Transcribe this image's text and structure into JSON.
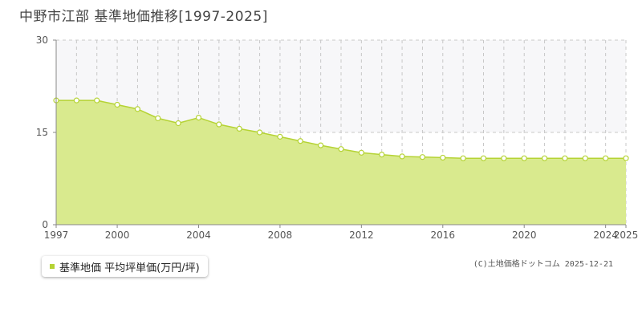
{
  "title": "中野市江部 基準地価推移[1997-2025]",
  "chart_data": {
    "type": "area",
    "title": "中野市江部 基準地価推移[1997-2025]",
    "xlabel": "",
    "ylabel": "",
    "xlim": [
      1997,
      2025
    ],
    "ylim": [
      0,
      30
    ],
    "y_ticks": [
      0,
      15,
      30
    ],
    "x_ticks": [
      1997,
      2000,
      2004,
      2008,
      2012,
      2016,
      2020,
      2024,
      2025
    ],
    "grid": true,
    "legend_position": "bottom-left",
    "series": [
      {
        "name": "基準地価 平均坪単価(万円/坪)",
        "color": "#b5d334",
        "fill": "#d9ea8e",
        "x": [
          1997,
          1998,
          1999,
          2000,
          2001,
          2002,
          2003,
          2004,
          2005,
          2006,
          2007,
          2008,
          2009,
          2010,
          2011,
          2012,
          2013,
          2014,
          2015,
          2016,
          2017,
          2018,
          2019,
          2020,
          2021,
          2022,
          2023,
          2024,
          2025
        ],
        "values": [
          20.2,
          20.2,
          20.2,
          19.5,
          18.8,
          17.3,
          16.5,
          17.4,
          16.3,
          15.6,
          15.0,
          14.3,
          13.6,
          12.9,
          12.3,
          11.7,
          11.4,
          11.1,
          11.0,
          10.9,
          10.8,
          10.8,
          10.8,
          10.8,
          10.8,
          10.8,
          10.8,
          10.8,
          10.8
        ]
      }
    ]
  },
  "legend": {
    "label": "基準地価 平均坪単価(万円/坪)"
  },
  "copyright": "(C)土地価格ドットコム 2025-12-21"
}
